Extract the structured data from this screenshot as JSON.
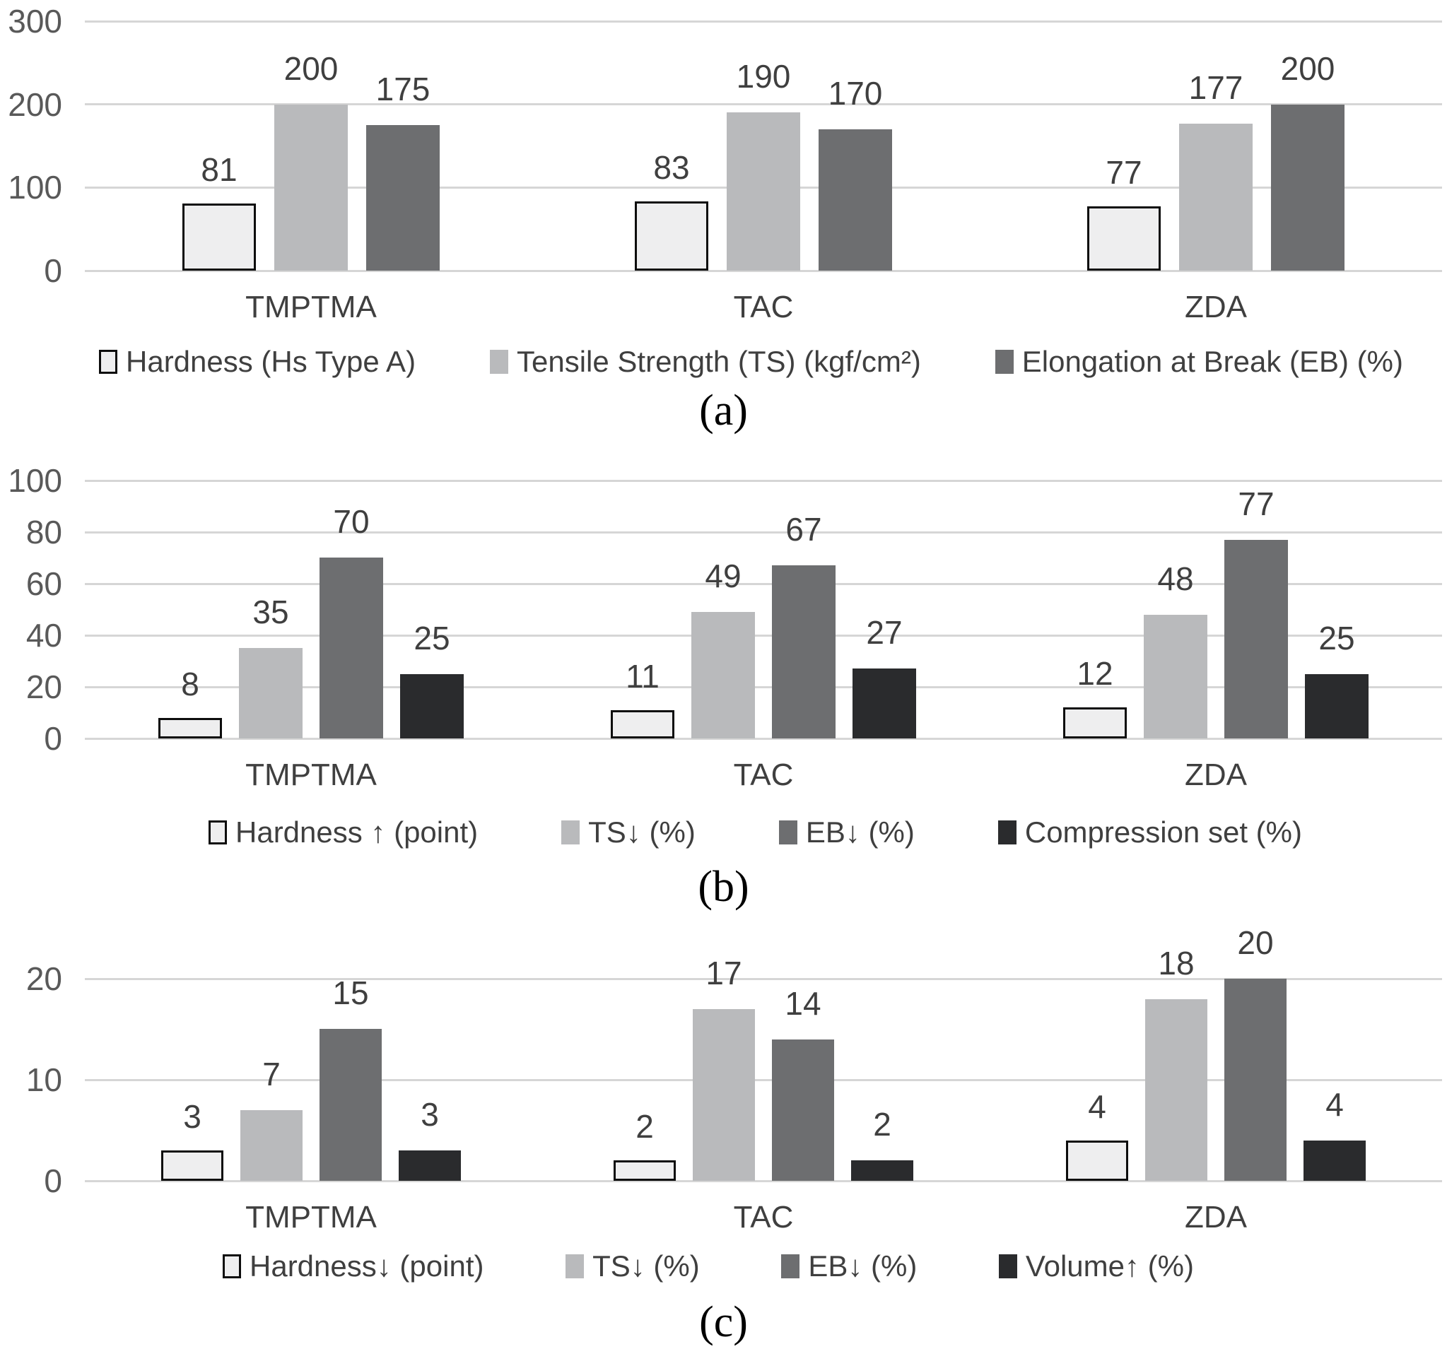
{
  "figure": {
    "description": "Three stacked grouped bar chart panels comparing TMPTMA, TAC and ZDA co-agents",
    "panels": [
      "(a)",
      "(b)",
      "(c)"
    ]
  },
  "colors": {
    "gridline": "#d6d6d6",
    "tick_label": "#595959",
    "value_label": "#3f3f3f",
    "category_label": "#3f3f3f",
    "legend_label": "#3f3f3f",
    "caption": "#000000"
  },
  "chart_data": [
    {
      "type": "bar",
      "caption": "(a)",
      "title": "",
      "xlabel": "",
      "ylabel": "",
      "categories": [
        "TMPTMA",
        "TAC",
        "ZDA"
      ],
      "ylim": [
        0,
        300
      ],
      "yticks": [
        0,
        100,
        200,
        300
      ],
      "grid": true,
      "legend_position": "bottom",
      "series": [
        {
          "name": "Hardness (Hs Type A)",
          "values": [
            81,
            83,
            77
          ],
          "fill": "#eeeeef",
          "border": "#0d0d0d"
        },
        {
          "name": "Tensile Strength (TS) (kgf/cm²)",
          "values": [
            200,
            190,
            177
          ],
          "fill": "#b9babc",
          "border": null
        },
        {
          "name": "Elongation at Break (EB) (%)",
          "values": [
            175,
            170,
            200
          ],
          "fill": "#6d6e70",
          "border": null
        }
      ]
    },
    {
      "type": "bar",
      "caption": "(b)",
      "title": "",
      "xlabel": "",
      "ylabel": "",
      "categories": [
        "TMPTMA",
        "TAC",
        "ZDA"
      ],
      "ylim": [
        0,
        100
      ],
      "yticks": [
        0,
        20,
        40,
        60,
        80,
        100
      ],
      "grid": true,
      "legend_position": "bottom",
      "series": [
        {
          "name": "Hardness ↑ (point)",
          "values": [
            8,
            11,
            12
          ],
          "fill": "#eeeeef",
          "border": "#0d0d0d"
        },
        {
          "name": "TS↓ (%)",
          "values": [
            35,
            49,
            48
          ],
          "fill": "#b9babc",
          "border": null
        },
        {
          "name": "EB↓ (%)",
          "values": [
            70,
            67,
            77
          ],
          "fill": "#6d6e70",
          "border": null
        },
        {
          "name": "Compression set (%)",
          "values": [
            25,
            27,
            25
          ],
          "fill": "#2a2b2d",
          "border": null
        }
      ]
    },
    {
      "type": "bar",
      "caption": "(c)",
      "title": "",
      "xlabel": "",
      "ylabel": "",
      "categories": [
        "TMPTMA",
        "TAC",
        "ZDA"
      ],
      "ylim": [
        0,
        20
      ],
      "yticks": [
        0,
        10,
        20
      ],
      "grid": true,
      "legend_position": "bottom",
      "series": [
        {
          "name": "Hardness↓ (point)",
          "values": [
            3,
            2,
            4
          ],
          "fill": "#eeeeef",
          "border": "#0d0d0d"
        },
        {
          "name": "TS↓ (%)",
          "values": [
            7,
            17,
            18
          ],
          "fill": "#b9babc",
          "border": null
        },
        {
          "name": "EB↓ (%)",
          "values": [
            15,
            14,
            20
          ],
          "fill": "#6d6e70",
          "border": null
        },
        {
          "name": "Volume↑ (%)",
          "values": [
            3,
            2,
            4
          ],
          "fill": "#2a2b2d",
          "border": null
        }
      ]
    }
  ]
}
